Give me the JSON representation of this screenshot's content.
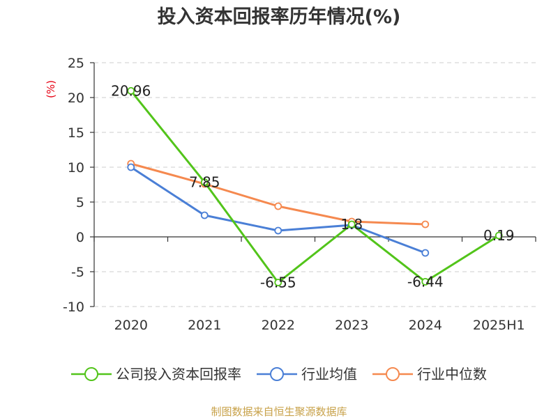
{
  "chart_data": {
    "type": "line",
    "title": "投入资本回报率历年情况(%)",
    "ylabel": "(%)",
    "xlabel": "",
    "categories": [
      "2020",
      "2021",
      "2022",
      "2023",
      "2024",
      "2025H1"
    ],
    "ylim": [
      -10,
      25
    ],
    "yticks": [
      25,
      20,
      15,
      10,
      5,
      0,
      -5,
      -10
    ],
    "grid": true,
    "legend_position": "bottom",
    "series": [
      {
        "name": "公司投入资本回报率",
        "color": "#52c41a",
        "values": [
          20.96,
          7.85,
          -6.55,
          1.8,
          -6.44,
          0.19
        ],
        "labels": [
          "20.96",
          "7.85",
          "-6.55",
          "1.8",
          "-6.44",
          "0.19"
        ]
      },
      {
        "name": "行业均值",
        "color": "#4a7fd6",
        "values": [
          10.0,
          3.1,
          0.9,
          1.7,
          -2.3,
          null
        ]
      },
      {
        "name": "行业中位数",
        "color": "#f5894f",
        "values": [
          10.5,
          7.6,
          4.4,
          2.2,
          1.8,
          null
        ]
      }
    ]
  },
  "footer": {
    "source": "制图数据来自恒生聚源数据库"
  }
}
